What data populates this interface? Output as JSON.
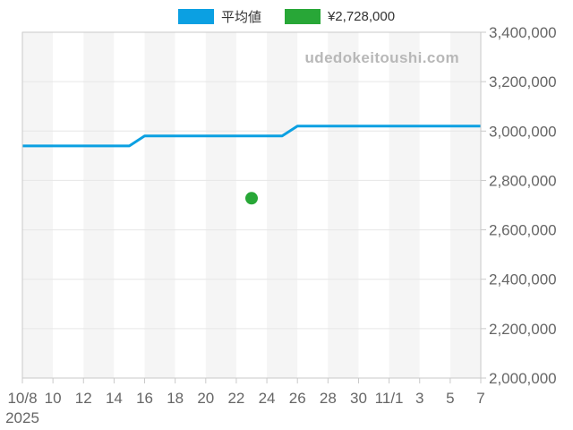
{
  "legend": {
    "items": [
      {
        "id": "average",
        "label": "平均値",
        "color": "#0ba0e2"
      },
      {
        "id": "price",
        "label": "¥2,728,000",
        "color": "#28a737"
      }
    ]
  },
  "watermark": "udedokeitoushi.com",
  "colors": {
    "stripe": "#f5f5f5",
    "stripe_alt": "#ffffff",
    "grid": "#e6e6e6",
    "axis": "#c9c9c9",
    "tick_text": "#666666",
    "legend_text": "#333333",
    "watermark": "#b8b8b8"
  },
  "chart_data": {
    "type": "line",
    "title": "",
    "legend_position": "top",
    "grid": true,
    "background_stripes": true,
    "x": {
      "year": "2025",
      "domain_days": [
        0,
        30
      ],
      "start_date": "10/8",
      "end_date": "11/7",
      "tick_days": [
        0,
        2,
        4,
        6,
        8,
        10,
        12,
        14,
        16,
        18,
        20,
        22,
        24,
        26,
        28,
        30
      ],
      "tick_labels": [
        "10/8",
        "10",
        "12",
        "14",
        "16",
        "18",
        "20",
        "22",
        "24",
        "26",
        "28",
        "30",
        "11/1",
        "3",
        "5",
        "7"
      ]
    },
    "y": {
      "min": 2000000,
      "max": 3400000,
      "step": 200000,
      "side": "right",
      "tick_labels": [
        "2,000,000",
        "2,200,000",
        "2,400,000",
        "2,600,000",
        "2,800,000",
        "3,000,000",
        "3,200,000",
        "3,400,000"
      ]
    },
    "series": [
      {
        "name": "平均値",
        "type": "line",
        "color": "#0ba0e2",
        "x_unit": "days since 10/8",
        "points": [
          [
            0,
            2940000
          ],
          [
            7,
            2940000
          ],
          [
            8,
            2980000
          ],
          [
            17,
            2980000
          ],
          [
            18,
            3020000
          ],
          [
            30,
            3020000
          ]
        ]
      },
      {
        "name": "¥2,728,000",
        "type": "scatter",
        "color": "#28a737",
        "x_unit": "days since 10/8",
        "date": "10/23",
        "points": [
          [
            15,
            2728000
          ]
        ]
      }
    ]
  }
}
